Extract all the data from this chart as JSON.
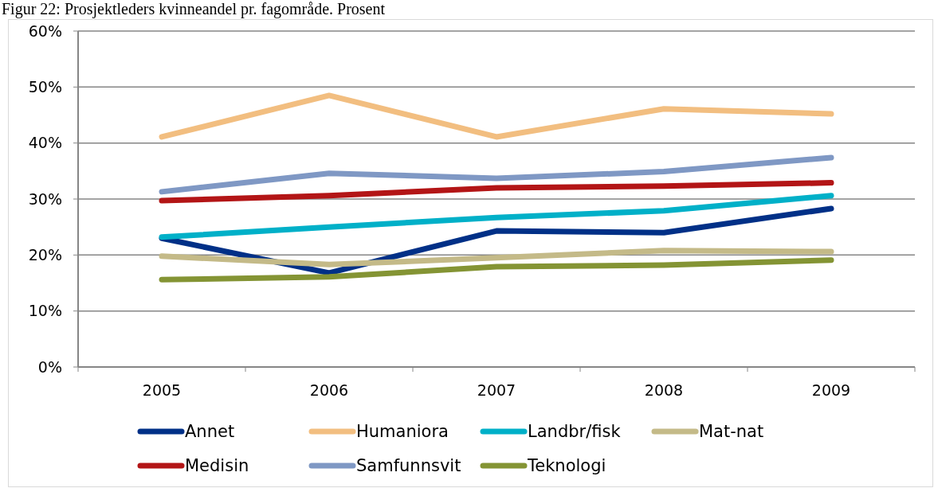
{
  "chart_data": {
    "type": "line",
    "title": "Figur 22: Prosjektleders kvinneandel pr. fagområde. Prosent",
    "categories": [
      "2005",
      "2006",
      "2007",
      "2008",
      "2009"
    ],
    "series": [
      {
        "name": "Annet",
        "color": "#003087",
        "values": [
          23.0,
          16.8,
          24.3,
          24.0,
          28.3
        ]
      },
      {
        "name": "Humaniora",
        "color": "#f2be80",
        "values": [
          41.1,
          48.5,
          41.1,
          46.1,
          45.2
        ]
      },
      {
        "name": "Landbr/fisk",
        "color": "#00b0c8",
        "values": [
          23.2,
          25.0,
          26.7,
          27.9,
          30.6
        ]
      },
      {
        "name": "Mat-nat",
        "color": "#c4ba88",
        "values": [
          19.8,
          18.3,
          19.5,
          20.8,
          20.6
        ]
      },
      {
        "name": "Medisin",
        "color": "#b31516",
        "values": [
          29.7,
          30.6,
          32.0,
          32.3,
          32.9
        ]
      },
      {
        "name": "Samfunnsvit",
        "color": "#7f98c4",
        "values": [
          31.3,
          34.6,
          33.7,
          34.9,
          37.4
        ]
      },
      {
        "name": "Teknologi",
        "color": "#849434",
        "values": [
          15.6,
          16.1,
          17.9,
          18.2,
          19.1
        ]
      }
    ],
    "ylim": [
      0,
      60
    ],
    "yticks": [
      {
        "value": 0,
        "label": "0%"
      },
      {
        "value": 10,
        "label": "10%"
      },
      {
        "value": 20,
        "label": "20%"
      },
      {
        "value": 30,
        "label": "30%"
      },
      {
        "value": 40,
        "label": "40%"
      },
      {
        "value": 50,
        "label": "50%"
      },
      {
        "value": 60,
        "label": "60%"
      }
    ],
    "grid": "y",
    "legend": "bottom",
    "marker": "none",
    "line_style": "solid"
  }
}
